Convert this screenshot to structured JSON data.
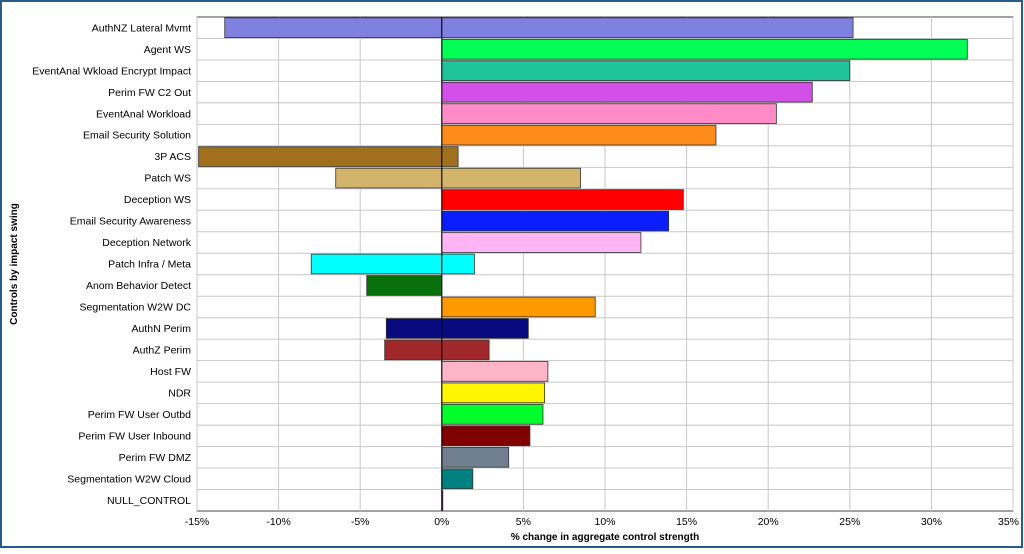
{
  "chart_data": {
    "type": "bar",
    "orientation": "horizontal",
    "title": "",
    "xlabel": "% change in aggregate control strength",
    "ylabel": "Controls by impact swing",
    "xlim": [
      -15,
      35
    ],
    "x_ticks": [
      -15,
      -10,
      -5,
      0,
      5,
      10,
      15,
      20,
      25,
      30,
      35
    ],
    "x_tick_labels": [
      "-15%",
      "-10%",
      "-5%",
      "0%",
      "5%",
      "10%",
      "15%",
      "20%",
      "25%",
      "30%",
      "35%"
    ],
    "grid": true,
    "legend": "none",
    "categories": [
      "AuthNZ Lateral Mvmt",
      "Agent WS",
      "EventAnal Wkload Encrypt Impact",
      "Perim FW C2 Out",
      "EventAnal Workload",
      "Email Security Solution",
      "3P ACS",
      "Patch WS",
      "Deception WS",
      "Email Security Awareness",
      "Deception Network",
      "Patch Infra / Meta",
      "Anom Behavior Detect",
      "Segmentation W2W DC",
      "AuthN Perim",
      "AuthZ Perim",
      "Host FW",
      "NDR",
      "Perim FW User Outbd",
      "Perim FW User Inbound",
      "Perim FW DMZ",
      "Segmentation W2W Cloud",
      "NULL_CONTROL"
    ],
    "low": [
      -13.3,
      0,
      0,
      0,
      0,
      0,
      -14.9,
      -6.5,
      0,
      0,
      0,
      -8.0,
      -4.6,
      0,
      -3.4,
      -3.5,
      0,
      0,
      0,
      0,
      0,
      0,
      0
    ],
    "high": [
      25.2,
      32.2,
      25.0,
      22.7,
      20.5,
      16.8,
      1.0,
      8.5,
      14.8,
      13.9,
      12.2,
      2.0,
      0,
      9.4,
      5.3,
      2.9,
      6.5,
      6.3,
      6.2,
      5.4,
      4.1,
      1.9,
      0.05
    ],
    "colors": [
      "#8080E0",
      "#00FF55",
      "#20C49A",
      "#D24FE8",
      "#FF8CC6",
      "#FF8C1A",
      "#A0701E",
      "#D2B46A",
      "#FF0000",
      "#0A1EFF",
      "#FFB4F5",
      "#00FFFF",
      "#087008",
      "#FF9900",
      "#0A0A80",
      "#A0282A",
      "#FFB4C8",
      "#FFF500",
      "#00FF2A",
      "#800000",
      "#708090",
      "#008080",
      "#800080"
    ]
  }
}
